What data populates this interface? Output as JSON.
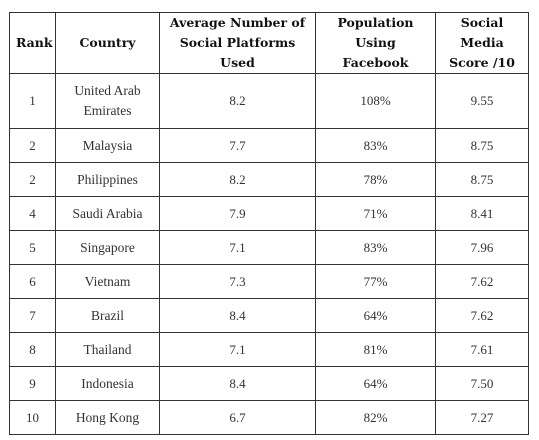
{
  "table": {
    "headers": {
      "rank": "Rank",
      "country": "Country",
      "avg_platforms": "Average Number of Social Platforms Used",
      "facebook": "Population Using Facebook",
      "score": "Social Media Score /10"
    },
    "rows": [
      {
        "rank": "1",
        "country": "United Arab Emirates",
        "avg_platforms": "8.2",
        "facebook": "108%",
        "score": "9.55"
      },
      {
        "rank": "2",
        "country": "Malaysia",
        "avg_platforms": "7.7",
        "facebook": "83%",
        "score": "8.75"
      },
      {
        "rank": "2",
        "country": "Philippines",
        "avg_platforms": "8.2",
        "facebook": "78%",
        "score": "8.75"
      },
      {
        "rank": "4",
        "country": "Saudi Arabia",
        "avg_platforms": "7.9",
        "facebook": "71%",
        "score": "8.41"
      },
      {
        "rank": "5",
        "country": "Singapore",
        "avg_platforms": "7.1",
        "facebook": "83%",
        "score": "7.96"
      },
      {
        "rank": "6",
        "country": "Vietnam",
        "avg_platforms": "7.3",
        "facebook": "77%",
        "score": "7.62"
      },
      {
        "rank": "7",
        "country": "Brazil",
        "avg_platforms": "8.4",
        "facebook": "64%",
        "score": "7.62"
      },
      {
        "rank": "8",
        "country": "Thailand",
        "avg_platforms": "7.1",
        "facebook": "81%",
        "score": "7.61"
      },
      {
        "rank": "9",
        "country": "Indonesia",
        "avg_platforms": "8.4",
        "facebook": "64%",
        "score": "7.50"
      },
      {
        "rank": "10",
        "country": "Hong Kong",
        "avg_platforms": "6.7",
        "facebook": "82%",
        "score": "7.27"
      }
    ]
  }
}
